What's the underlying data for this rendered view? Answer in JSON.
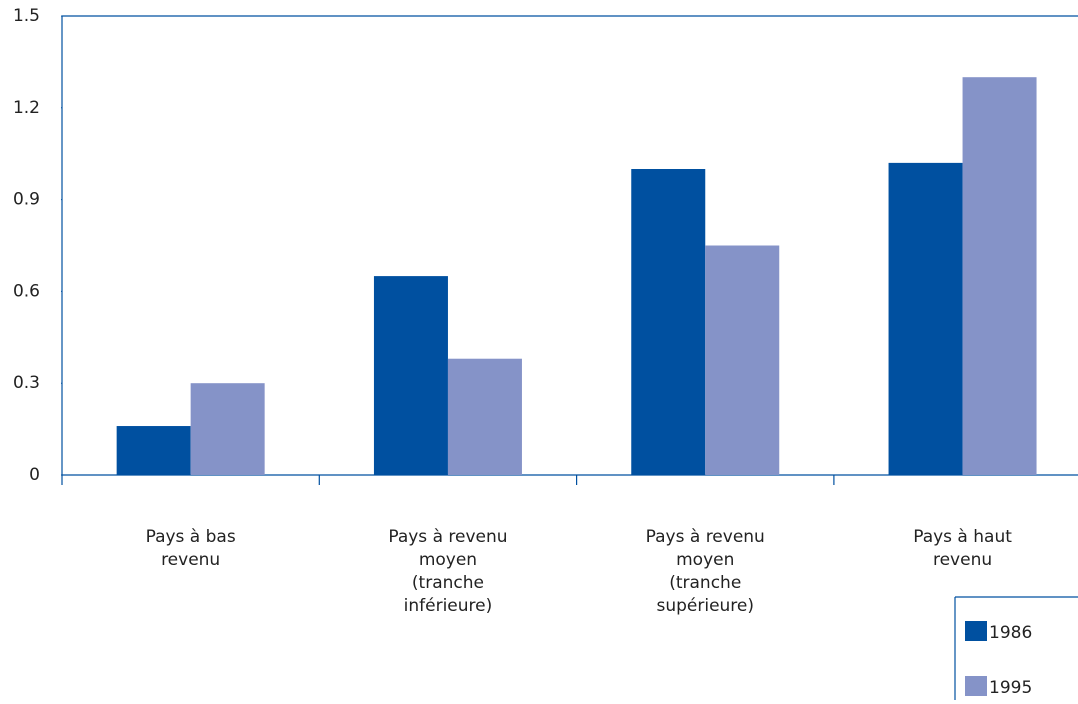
{
  "chart_data": {
    "type": "bar",
    "categories": [
      [
        "Pays à bas",
        "revenu"
      ],
      [
        "Pays à revenu",
        "moyen",
        "(tranche",
        "inférieure)"
      ],
      [
        "Pays à revenu",
        "moyen",
        "(tranche",
        "supérieure)"
      ],
      [
        "Pays à haut",
        "revenu"
      ]
    ],
    "series": [
      {
        "name": "1986",
        "color": "#0050a0",
        "values": [
          0.16,
          0.65,
          1.0,
          1.02
        ]
      },
      {
        "name": "1995",
        "color": "#8593c8",
        "values": [
          0.3,
          0.38,
          0.75,
          1.3
        ]
      }
    ],
    "ylim": [
      0,
      1.5
    ],
    "yticks": [
      0,
      {
        "value": 0.3,
        "label": "0.3"
      },
      {
        "value": 0.6,
        "label": "0.6"
      },
      {
        "value": 0.9,
        "label": "0.9"
      },
      {
        "value": 1.2,
        "label": "1.2"
      },
      {
        "value": 1.5,
        "label": "1.5"
      }
    ]
  }
}
